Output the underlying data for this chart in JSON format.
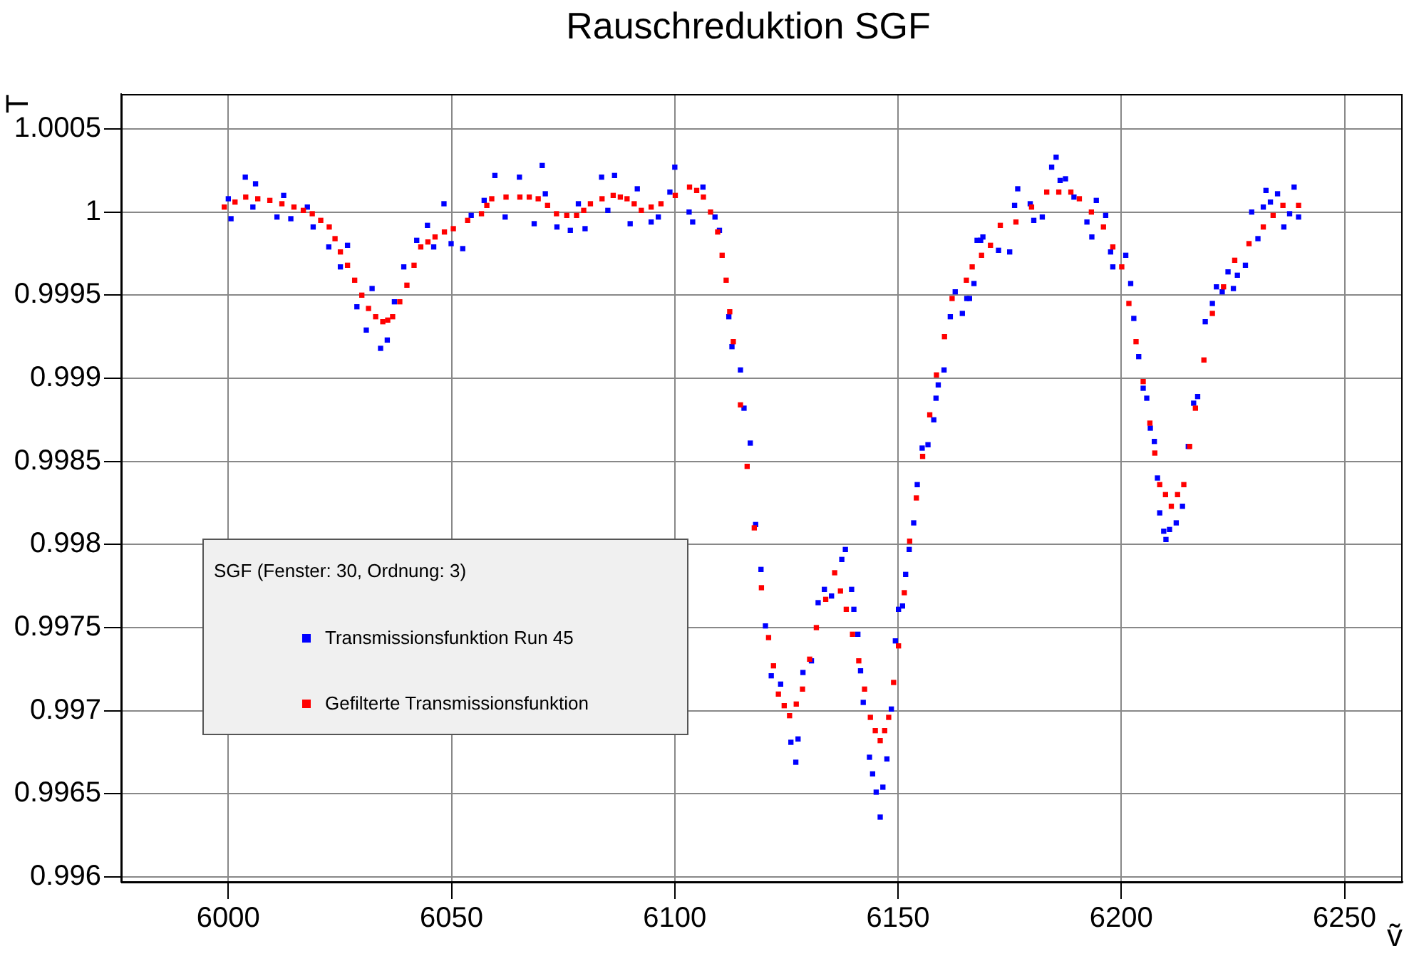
{
  "chart_data": {
    "type": "scatter",
    "title": "Rauschreduktion SGF",
    "xlabel": "ṽ",
    "ylabel": "T",
    "legend_title": "SGF (Fenster: 30, Ordnung: 3)",
    "legend": "left",
    "grid": true,
    "marker": "square",
    "xlim": [
      5976,
      6263
    ],
    "xticks": [
      6000,
      6050,
      6100,
      6150,
      6200,
      6250
    ],
    "ylim": [
      0.99597,
      1.00071
    ],
    "yticks": [
      0.996,
      0.9965,
      0.997,
      0.9975,
      0.998,
      0.9985,
      0.999,
      0.9995,
      1,
      1.0005
    ],
    "series": [
      {
        "name": "Transmissionsfunktion Run 45",
        "color": "#0000ff",
        "x": [
          6000,
          6000.6,
          6003.8,
          6005.5,
          6006.1,
          6010.9,
          6012.4,
          6014,
          6017.7,
          6019,
          6022.5,
          6025.1,
          6026.7,
          6028.8,
          6030.9,
          6032.2,
          6034.1,
          6035.6,
          6037.2,
          6039.3,
          6042.2,
          6044.6,
          6046,
          6048.3,
          6049.9,
          6052.5,
          6054.4,
          6057.3,
          6059.7,
          6062,
          6065.2,
          6068.5,
          6070.3,
          6071,
          6073.6,
          6076.6,
          6078.4,
          6079.9,
          6083.6,
          6085,
          6086.5,
          6090,
          6091.6,
          6094.7,
          6096.3,
          6098.9,
          6100,
          6103.2,
          6104,
          6106.3,
          6109,
          6110,
          6112.1,
          6112.8,
          6114.7,
          6115.5,
          6116.9,
          6118.1,
          6119.3,
          6120.3,
          6121.6,
          6123.7,
          6126,
          6127.1,
          6127.6,
          6128.7,
          6130.6,
          6132.1,
          6133.5,
          6135.1,
          6137.4,
          6138.2,
          6139.6,
          6140.1,
          6141,
          6141.6,
          6142.2,
          6143.6,
          6144.3,
          6145.1,
          6146,
          6146.6,
          6147.5,
          6148.5,
          6149.4,
          6150.1,
          6151,
          6151.7,
          6152.5,
          6153.5,
          6154.3,
          6155.4,
          6156.7,
          6158,
          6158.5,
          6159,
          6160.3,
          6161.7,
          6162.8,
          6164.4,
          6165.4,
          6166,
          6167,
          6167.7,
          6168.5,
          6169,
          6172.5,
          6175,
          6176.1,
          6176.8,
          6179.6,
          6180.4,
          6182.3,
          6184.4,
          6185.4,
          6186.3,
          6187.5,
          6189.4,
          6192.3,
          6193.4,
          6194.4,
          6196.5,
          6197.6,
          6198.1,
          6201,
          6202.1,
          6202.8,
          6203.9,
          6204.9,
          6205.7,
          6206.5,
          6207.4,
          6208.1,
          6208.6,
          6209.5,
          6210,
          6210.8,
          6212.3,
          6213.7,
          6215,
          6216.2,
          6217.1,
          6218.8,
          6220.4,
          6221.3,
          6222.6,
          6223.9,
          6225.1,
          6226,
          6227.8,
          6229.2,
          6230.6,
          6231.8,
          6232.4,
          6233.4,
          6235,
          6236.4,
          6237.7,
          6238.7,
          6239.7
        ],
        "values": [
          1.00008,
          0.99996,
          1.00021,
          1.00003,
          1.00017,
          0.99997,
          1.0001,
          0.99996,
          1.00003,
          0.99991,
          0.99979,
          0.99967,
          0.9998,
          0.99943,
          0.99929,
          0.99954,
          0.99918,
          0.99923,
          0.99946,
          0.99967,
          0.99983,
          0.99992,
          0.99979,
          1.00005,
          0.99981,
          0.99978,
          0.99998,
          1.00007,
          1.00022,
          0.99997,
          1.00021,
          0.99993,
          1.00028,
          1.00011,
          0.99991,
          0.99989,
          1.00005,
          0.9999,
          1.00021,
          1.00001,
          1.00022,
          0.99993,
          1.00014,
          0.99994,
          0.99997,
          1.00012,
          1.00027,
          1,
          0.99994,
          1.00015,
          0.99997,
          0.99989,
          0.99937,
          0.99919,
          0.99905,
          0.99882,
          0.99861,
          0.99812,
          0.99785,
          0.99751,
          0.99721,
          0.99716,
          0.99681,
          0.99669,
          0.99683,
          0.99723,
          0.9973,
          0.99765,
          0.99773,
          0.99769,
          0.99791,
          0.99797,
          0.99773,
          0.99761,
          0.99746,
          0.99724,
          0.99705,
          0.99672,
          0.99662,
          0.99651,
          0.99636,
          0.99654,
          0.99671,
          0.99701,
          0.99742,
          0.99761,
          0.99763,
          0.99782,
          0.99797,
          0.99813,
          0.99836,
          0.99858,
          0.9986,
          0.99875,
          0.99888,
          0.99896,
          0.99905,
          0.99937,
          0.99952,
          0.99939,
          0.99948,
          0.99948,
          0.99957,
          0.99983,
          0.99983,
          0.99985,
          0.99977,
          0.99976,
          1.00004,
          1.00014,
          1.00005,
          0.99995,
          0.99997,
          1.00027,
          1.00033,
          1.00019,
          1.0002,
          1.00009,
          0.99994,
          0.99985,
          1.00007,
          0.99998,
          0.99976,
          0.99967,
          0.99974,
          0.99957,
          0.99936,
          0.99913,
          0.99894,
          0.99888,
          0.9987,
          0.99862,
          0.9984,
          0.99819,
          0.99808,
          0.99803,
          0.99809,
          0.99813,
          0.99823,
          0.99859,
          0.99885,
          0.99889,
          0.99934,
          0.99945,
          0.99955,
          0.99952,
          0.99964,
          0.99954,
          0.99962,
          0.99968,
          1,
          0.99984,
          1.00003,
          1.00013,
          1.00006,
          1.00011,
          0.99991,
          0.99999,
          1.00015,
          0.99997
        ]
      },
      {
        "name": "Gefilterte Transmissionsfunktion",
        "color": "#ff0000",
        "x": [
          5999.1,
          6001.5,
          6003.9,
          6006.6,
          6009.3,
          6012,
          6014.7,
          6016.8,
          6018.8,
          6020.7,
          6022.6,
          6023.9,
          6025.1,
          6026.7,
          6028.3,
          6029.9,
          6031.4,
          6033,
          6034.6,
          6035.7,
          6036.8,
          6038.4,
          6040,
          6041.6,
          6043.1,
          6044.7,
          6046.3,
          6048.4,
          6050.4,
          6053.6,
          6056.7,
          6057.9,
          6059,
          6062.2,
          6065.3,
          6067.4,
          6069.4,
          6071.5,
          6073.5,
          6075.8,
          6078,
          6079.6,
          6081.1,
          6083.7,
          6086.2,
          6087.8,
          6089.3,
          6090.9,
          6092.5,
          6094.7,
          6096.9,
          6100.1,
          6103.3,
          6104.9,
          6106.4,
          6108,
          6109.6,
          6110.6,
          6111.5,
          6112.3,
          6113.1,
          6114.7,
          6116.2,
          6117.8,
          6119.4,
          6121,
          6122.1,
          6123.2,
          6124.5,
          6125.7,
          6127.2,
          6128.6,
          6130.2,
          6131.7,
          6133.8,
          6135.8,
          6137.1,
          6138.4,
          6139.8,
          6141.2,
          6142.5,
          6143.8,
          6144.9,
          6146,
          6147,
          6147.9,
          6149,
          6150.1,
          6151.4,
          6152.6,
          6154.1,
          6155.5,
          6157.1,
          6158.6,
          6160.4,
          6162.1,
          6165.3,
          6166.6,
          6168.7,
          6170.7,
          6172.9,
          6176.4,
          6179.9,
          6183.3,
          6186,
          6188.7,
          6190.6,
          6193.3,
          6196,
          6198.1,
          6200.1,
          6201.7,
          6203.3,
          6204.9,
          6206.4,
          6207.5,
          6208.6,
          6209.9,
          6211.2,
          6212.6,
          6214,
          6215.3,
          6216.6,
          6218.5,
          6220.4,
          6222.9,
          6225.4,
          6228.6,
          6231.8,
          6234,
          6236.2,
          6239.7
        ],
        "values": [
          1.00003,
          1.00006,
          1.00009,
          1.00008,
          1.00007,
          1.00005,
          1.00003,
          1.00001,
          0.99999,
          0.99995,
          0.99991,
          0.99984,
          0.99976,
          0.99968,
          0.99959,
          0.9995,
          0.99942,
          0.99937,
          0.99934,
          0.99935,
          0.99937,
          0.99946,
          0.99956,
          0.99968,
          0.99979,
          0.99982,
          0.99985,
          0.99988,
          0.9999,
          0.99995,
          0.99999,
          1.00004,
          1.00008,
          1.00009,
          1.00009,
          1.00009,
          1.00008,
          1.00004,
          0.99999,
          0.99998,
          0.99998,
          1.00001,
          1.00005,
          1.00008,
          1.0001,
          1.00009,
          1.00008,
          1.00005,
          1.00001,
          1.00003,
          1.00005,
          1.0001,
          1.00015,
          1.00013,
          1.00009,
          1,
          0.99988,
          0.99974,
          0.99959,
          0.9994,
          0.99922,
          0.99884,
          0.99847,
          0.9981,
          0.99774,
          0.99744,
          0.99727,
          0.9971,
          0.99703,
          0.99697,
          0.99704,
          0.99713,
          0.99731,
          0.9975,
          0.99767,
          0.99783,
          0.99772,
          0.99761,
          0.99746,
          0.9973,
          0.99713,
          0.99696,
          0.99688,
          0.99682,
          0.99688,
          0.99696,
          0.99717,
          0.99739,
          0.99771,
          0.99802,
          0.99828,
          0.99853,
          0.99878,
          0.99902,
          0.99925,
          0.99948,
          0.99959,
          0.99967,
          0.99974,
          0.9998,
          0.99992,
          0.99994,
          1.00003,
          1.00012,
          1.00012,
          1.00012,
          1.00008,
          1,
          0.99991,
          0.99979,
          0.99967,
          0.99945,
          0.99922,
          0.99898,
          0.99873,
          0.99855,
          0.99836,
          0.9983,
          0.99823,
          0.9983,
          0.99836,
          0.99859,
          0.99882,
          0.99911,
          0.99939,
          0.99955,
          0.99971,
          0.99981,
          0.99991,
          0.99998,
          1.00004,
          1.00004
        ]
      }
    ]
  }
}
